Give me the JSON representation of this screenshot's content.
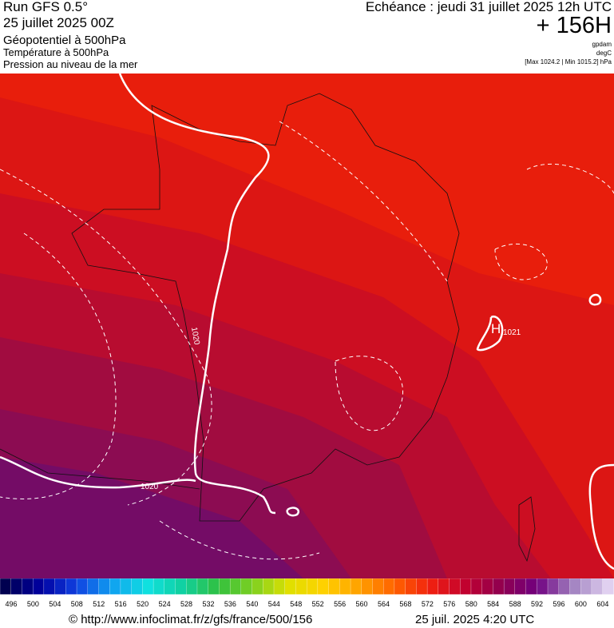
{
  "header": {
    "title": "Run GFS 0.5°",
    "run_date": "25 juillet 2025 00Z",
    "field": "Géopotentiel à 500hPa",
    "field2": "Température à 500hPa",
    "field3": "Pression au niveau de la mer",
    "valid": "Echéance : jeudi 31 juillet 2025 12h UTC",
    "lead": "+ 156H",
    "unit1": "gpdam",
    "unit2": "degC",
    "unit3": "[Max 1024.2 | Min 1015.2] hPa"
  },
  "map": {
    "labels": [
      "1020",
      "1020",
      "1021",
      "H"
    ]
  },
  "colorbar": {
    "labels": [
      496,
      500,
      504,
      508,
      512,
      516,
      520,
      524,
      528,
      532,
      536,
      540,
      544,
      548,
      552,
      556,
      560,
      564,
      568,
      572,
      576,
      580,
      584,
      588,
      592,
      596,
      600,
      604
    ]
  },
  "footer": {
    "source": "© http://www.infoclimat.fr/z/gfs/france/500/156",
    "date": "25 juil. 2025  4:20 UTC"
  }
}
